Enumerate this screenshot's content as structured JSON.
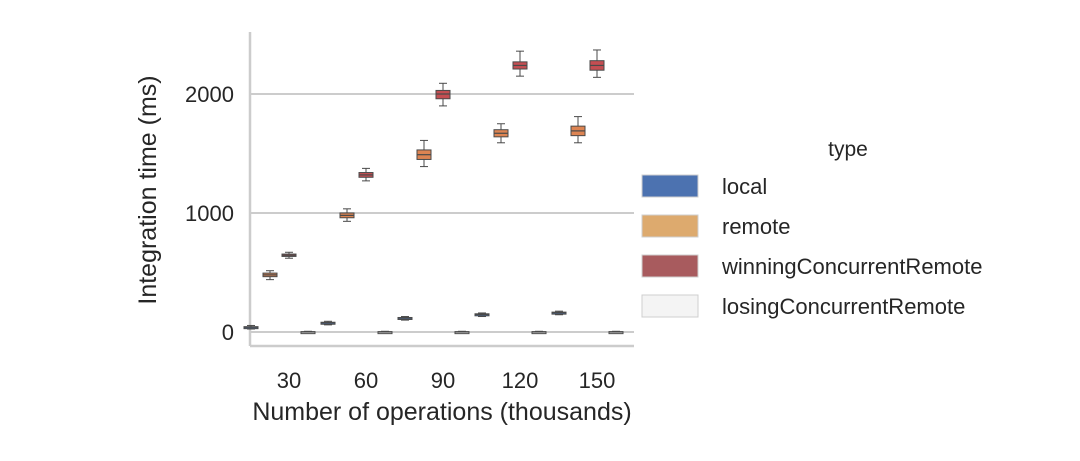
{
  "chart_data": {
    "type": "boxplot",
    "xlabel": "Number of operations (thousands)",
    "ylabel": "Integration time (ms)",
    "categories": [
      "30",
      "60",
      "90",
      "120",
      "150"
    ],
    "yticks": [
      0,
      1000,
      2000
    ],
    "ylim": [
      -110,
      2520
    ],
    "grid": "horizontal",
    "legend": {
      "title": "type",
      "placement": "right"
    },
    "series": [
      {
        "name": "local",
        "color": "#4c72b0",
        "boxes": [
          {
            "min": 25,
            "q1": 35,
            "median": 40,
            "q3": 45,
            "max": 55
          },
          {
            "min": 60,
            "q1": 72,
            "median": 77,
            "q3": 82,
            "max": 90
          },
          {
            "min": 100,
            "q1": 112,
            "median": 117,
            "q3": 122,
            "max": 130
          },
          {
            "min": 130,
            "q1": 143,
            "median": 148,
            "q3": 153,
            "max": 160
          },
          {
            "min": 145,
            "q1": 157,
            "median": 162,
            "q3": 167,
            "max": 175
          }
        ]
      },
      {
        "name": "remote",
        "color": "#dd8452",
        "boxes": [
          {
            "min": 440,
            "q1": 465,
            "median": 480,
            "q3": 495,
            "max": 515
          },
          {
            "min": 930,
            "q1": 960,
            "median": 980,
            "q3": 1000,
            "max": 1035
          },
          {
            "min": 1390,
            "q1": 1450,
            "median": 1490,
            "q3": 1530,
            "max": 1610
          },
          {
            "min": 1590,
            "q1": 1640,
            "median": 1670,
            "q3": 1700,
            "max": 1750
          },
          {
            "min": 1590,
            "q1": 1650,
            "median": 1690,
            "q3": 1730,
            "max": 1810
          }
        ]
      },
      {
        "name": "winningConcurrentRemote",
        "color": "#c44e52",
        "boxes": [
          {
            "min": 620,
            "q1": 635,
            "median": 645,
            "q3": 655,
            "max": 670
          },
          {
            "min": 1270,
            "q1": 1300,
            "median": 1320,
            "q3": 1340,
            "max": 1375
          },
          {
            "min": 1900,
            "q1": 1960,
            "median": 2000,
            "q3": 2030,
            "max": 2090
          },
          {
            "min": 2150,
            "q1": 2210,
            "median": 2240,
            "q3": 2270,
            "max": 2360
          },
          {
            "min": 2140,
            "q1": 2200,
            "median": 2240,
            "q3": 2280,
            "max": 2370
          }
        ]
      },
      {
        "name": "losingConcurrentRemote",
        "color": "#f2f2f2",
        "boxes": [
          {
            "min": -6,
            "q1": -3,
            "median": 0,
            "q3": 3,
            "max": 6
          },
          {
            "min": -6,
            "q1": -3,
            "median": 0,
            "q3": 3,
            "max": 6
          },
          {
            "min": -6,
            "q1": -3,
            "median": 0,
            "q3": 3,
            "max": 6
          },
          {
            "min": -6,
            "q1": -3,
            "median": 0,
            "q3": 3,
            "max": 6
          },
          {
            "min": -6,
            "q1": -3,
            "median": 0,
            "q3": 3,
            "max": 6
          }
        ]
      }
    ],
    "legend_swatch_colors": {
      "local": "#4c72b0",
      "remote": "#ddaa6e",
      "winningConcurrentRemote": "#a85b5e",
      "losingConcurrentRemote": "#f4f4f4"
    },
    "box_placement_note": "Each category shows local box at left, then remote, winningConcurrentRemote, losingConcurrentRemote offsets."
  }
}
